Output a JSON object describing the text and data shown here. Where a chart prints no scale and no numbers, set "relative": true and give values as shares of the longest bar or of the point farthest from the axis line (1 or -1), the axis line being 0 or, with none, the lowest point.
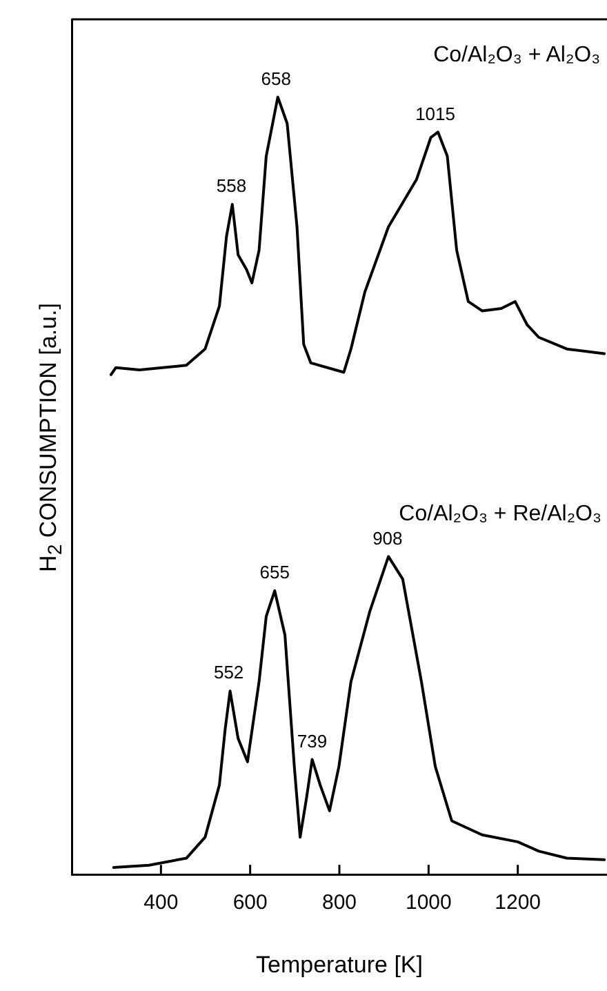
{
  "chart_data": {
    "type": "line",
    "relative": true,
    "xlabel": "Temperature [K]",
    "ylabel": "H$_{2}$ CONSUMPTION [a.u.]",
    "xlim": [
      200,
      1400
    ],
    "xticks": [
      400,
      600,
      800,
      1000,
      1200
    ],
    "grid": false,
    "legend": false,
    "marker": "none",
    "line_style": "solid",
    "series": [
      {
        "name": "Co/Al₂O₃ + Al₂O₃",
        "color": "#000000",
        "x": [
          288,
          299,
          352,
          457,
          499,
          531,
          547,
          560,
          573,
          592,
          604,
          620,
          636,
          662,
          683,
          705,
          720,
          736,
          810,
          826,
          857,
          910,
          973,
          1005,
          1021,
          1042,
          1063,
          1089,
          1120,
          1163,
          1194,
          1221,
          1247,
          1310,
          1394
        ],
        "values": [
          0.643,
          0.652,
          0.649,
          0.655,
          0.676,
          0.731,
          0.821,
          0.862,
          0.797,
          0.778,
          0.761,
          0.803,
          0.924,
          1.0,
          0.966,
          0.833,
          0.682,
          0.658,
          0.646,
          0.676,
          0.749,
          0.833,
          0.894,
          0.948,
          0.955,
          0.924,
          0.803,
          0.737,
          0.725,
          0.728,
          0.737,
          0.707,
          0.691,
          0.676,
          0.67
        ]
      },
      {
        "name": "Co/Al₂O₃ + Re/Al₂O₃",
        "color": "#000000",
        "x": [
          294,
          373,
          457,
          499,
          531,
          544,
          555,
          573,
          594,
          620,
          636,
          655,
          678,
          699,
          712,
          726,
          739,
          757,
          778,
          799,
          826,
          868,
          910,
          942,
          984,
          1015,
          1052,
          1120,
          1200,
          1247,
          1310,
          1394
        ],
        "values": [
          0.009,
          0.012,
          0.021,
          0.048,
          0.115,
          0.187,
          0.236,
          0.175,
          0.145,
          0.248,
          0.332,
          0.365,
          0.308,
          0.139,
          0.048,
          0.097,
          0.148,
          0.115,
          0.082,
          0.139,
          0.248,
          0.338,
          0.409,
          0.38,
          0.248,
          0.139,
          0.069,
          0.051,
          0.042,
          0.03,
          0.021,
          0.019
        ]
      }
    ],
    "annotations": [
      {
        "text": "558",
        "x": 558,
        "y": 0.862
      },
      {
        "text": "658",
        "x": 658,
        "y": 1.0
      },
      {
        "text": "1015",
        "x": 1015,
        "y": 0.955
      },
      {
        "text": "552",
        "x": 552,
        "y": 0.236
      },
      {
        "text": "655",
        "x": 655,
        "y": 0.365
      },
      {
        "text": "739",
        "x": 739,
        "y": 0.148
      },
      {
        "text": "908",
        "x": 908,
        "y": 0.409
      }
    ]
  }
}
